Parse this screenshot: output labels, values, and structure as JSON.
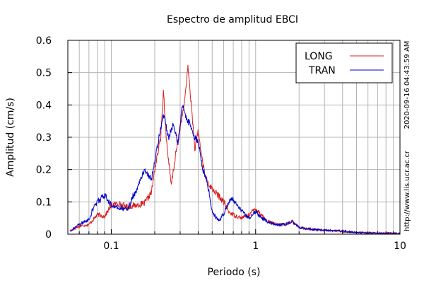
{
  "chart_data": {
    "type": "line",
    "title": "Espectro de amplitud EBCI",
    "xlabel": "Periodo (s)",
    "ylabel": "Amplitud (cm/s)",
    "xscale": "log",
    "xlim": [
      0.05,
      10
    ],
    "ylim": [
      0,
      0.6
    ],
    "xticks": [
      0.1,
      1,
      10
    ],
    "xtick_labels": [
      "0.1",
      "1",
      "10"
    ],
    "yticks": [
      0,
      0.1,
      0.2,
      0.3,
      0.4,
      0.5,
      0.6
    ],
    "ytick_labels": [
      "0",
      "0.1",
      "0.2",
      "0.3",
      "0.4",
      "0.5",
      "0.6"
    ],
    "grid": true,
    "legend_position": "top-right",
    "series": [
      {
        "name": "LONG",
        "color": "#d81e1e",
        "x": [
          0.052,
          0.06,
          0.07,
          0.08,
          0.09,
          0.1,
          0.11,
          0.12,
          0.13,
          0.15,
          0.17,
          0.19,
          0.2,
          0.21,
          0.22,
          0.23,
          0.24,
          0.26,
          0.28,
          0.3,
          0.32,
          0.34,
          0.36,
          0.38,
          0.4,
          0.42,
          0.45,
          0.5,
          0.55,
          0.6,
          0.65,
          0.7,
          0.8,
          0.9,
          1.0,
          1.1,
          1.2,
          1.4,
          1.6,
          1.8,
          2.0,
          2.5,
          3,
          4,
          5,
          7,
          10
        ],
        "y": [
          0.01,
          0.025,
          0.03,
          0.06,
          0.055,
          0.09,
          0.095,
          0.09,
          0.085,
          0.09,
          0.095,
          0.13,
          0.2,
          0.25,
          0.3,
          0.45,
          0.3,
          0.15,
          0.25,
          0.33,
          0.4,
          0.52,
          0.39,
          0.26,
          0.32,
          0.25,
          0.17,
          0.14,
          0.12,
          0.1,
          0.07,
          0.06,
          0.05,
          0.06,
          0.08,
          0.06,
          0.04,
          0.03,
          0.03,
          0.04,
          0.02,
          0.015,
          0.012,
          0.008,
          0.005,
          0.004,
          0.003
        ]
      },
      {
        "name": "TRAN",
        "color": "#0000c8",
        "x": [
          0.052,
          0.06,
          0.07,
          0.075,
          0.08,
          0.09,
          0.1,
          0.11,
          0.12,
          0.13,
          0.15,
          0.17,
          0.19,
          0.21,
          0.23,
          0.25,
          0.27,
          0.29,
          0.31,
          0.33,
          0.35,
          0.37,
          0.4,
          0.43,
          0.46,
          0.5,
          0.55,
          0.6,
          0.65,
          0.7,
          0.8,
          0.9,
          1.0,
          1.1,
          1.2,
          1.4,
          1.6,
          1.8,
          2.0,
          2.5,
          3,
          4,
          5,
          7,
          10
        ],
        "y": [
          0.01,
          0.03,
          0.045,
          0.08,
          0.1,
          0.12,
          0.09,
          0.08,
          0.08,
          0.08,
          0.14,
          0.2,
          0.17,
          0.28,
          0.37,
          0.3,
          0.34,
          0.28,
          0.4,
          0.36,
          0.34,
          0.3,
          0.29,
          0.2,
          0.17,
          0.07,
          0.04,
          0.06,
          0.1,
          0.11,
          0.07,
          0.05,
          0.07,
          0.05,
          0.04,
          0.03,
          0.03,
          0.04,
          0.02,
          0.015,
          0.012,
          0.01,
          0.005,
          0.003,
          0.002
        ]
      }
    ]
  },
  "side_text": "http://www.lis.ucr.ac.cr",
  "timestamp_text": "2020-09-16 04:43:59 AM"
}
